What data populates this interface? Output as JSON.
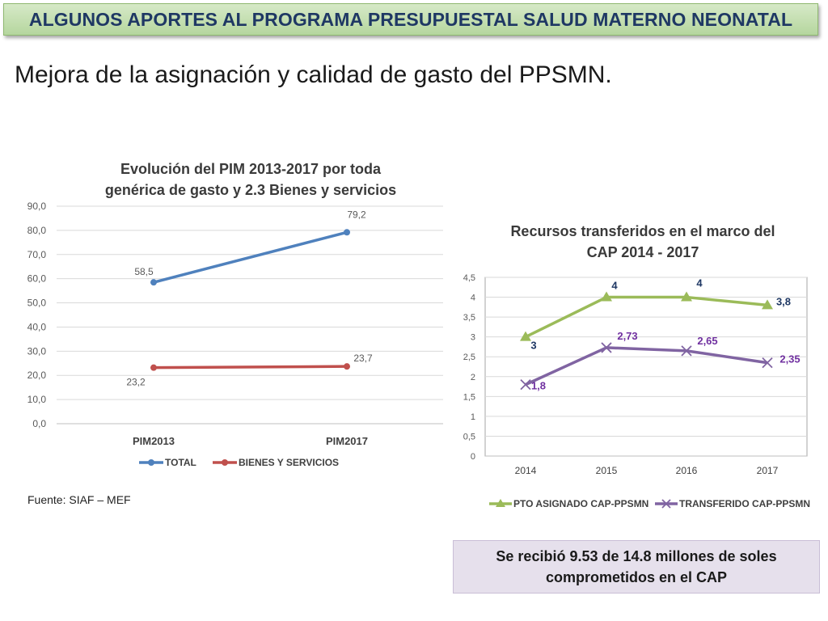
{
  "banner": {
    "title": "ALGUNOS APORTES  AL PROGRAMA PRESUPUESTAL SALUD MATERNO NEONATAL"
  },
  "subtitle": "Mejora de la asignación y calidad de gasto del PPSMN.",
  "source": "Fuente: SIAF – MEF",
  "note": "Se recibió 9.53 de 14.8 millones de soles comprometidos en el CAP",
  "colors": {
    "total": "#4f81bd",
    "bienes": "#c0504d",
    "asignado": "#9bbb59",
    "transferido": "#8064a2",
    "grid": "#d9d9d9"
  },
  "chart_data": [
    {
      "type": "line",
      "title": "Evolución del PIM 2013-2017 por toda genérica de gasto y 2.3 Bienes y servicios",
      "title_lines": [
        "Evolución del PIM 2013-2017 por toda",
        "genérica de gasto y 2.3 Bienes y servicios"
      ],
      "categories": [
        "PIM2013",
        "PIM2017"
      ],
      "y_ticks": [
        "0,0",
        "10,0",
        "20,0",
        "30,0",
        "40,0",
        "50,0",
        "60,0",
        "70,0",
        "80,0",
        "90,0"
      ],
      "ylim": [
        0,
        90
      ],
      "series": [
        {
          "name": "TOTAL",
          "values": [
            58.5,
            79.2
          ],
          "labels": [
            "58,5",
            "79,2"
          ],
          "color": "#4f81bd",
          "marker": "circle"
        },
        {
          "name": "BIENES Y SERVICIOS",
          "values": [
            23.2,
            23.7
          ],
          "labels": [
            "23,2",
            "23,7"
          ],
          "color": "#c0504d",
          "marker": "circle"
        }
      ],
      "legend": "bottom",
      "grid": true
    },
    {
      "type": "line",
      "title": "Recursos transferidos en el marco del CAP 2014 - 2017",
      "title_lines": [
        "Recursos transferidos en el marco del",
        "CAP 2014 - 2017"
      ],
      "categories": [
        "2014",
        "2015",
        "2016",
        "2017"
      ],
      "y_ticks": [
        "0",
        "0,5",
        "1",
        "1,5",
        "2",
        "2,5",
        "3",
        "3,5",
        "4",
        "4,5"
      ],
      "ylim": [
        0,
        4.5
      ],
      "series": [
        {
          "name": "PTO ASIGNADO CAP-PPSMN",
          "values": [
            3,
            4,
            4,
            3.8
          ],
          "labels": [
            "3",
            "4",
            "4",
            "3,8"
          ],
          "color": "#9bbb59",
          "label_color": "#1f3864",
          "marker": "triangle"
        },
        {
          "name": "TRANSFERIDO CAP-PPSMN",
          "values": [
            1.8,
            2.73,
            2.65,
            2.35
          ],
          "labels": [
            "1,8",
            "2,73",
            "2,65",
            "2,35"
          ],
          "color": "#8064a2",
          "label_color": "#7030a0",
          "marker": "x"
        }
      ],
      "legend": "bottom",
      "grid": true
    }
  ]
}
